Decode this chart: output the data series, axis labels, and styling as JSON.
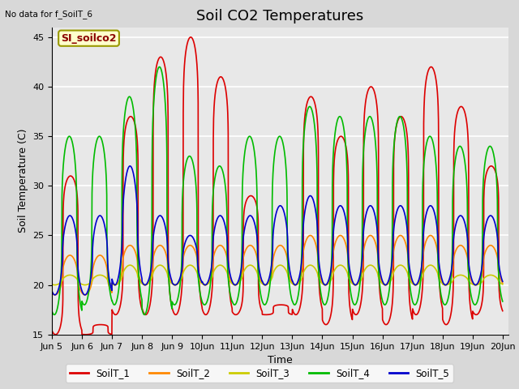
{
  "title": "Soil CO2 Temperatures",
  "xlabel": "Time",
  "ylabel": "Soil Temperature (C)",
  "ylim": [
    15,
    46
  ],
  "yticks": [
    15,
    20,
    25,
    30,
    35,
    40,
    45
  ],
  "xlim_days": [
    5.0,
    20.2
  ],
  "note": "No data for f_SoilT_6",
  "legend_label": "SI_soilco2",
  "series_names": [
    "SoilT_1",
    "SoilT_2",
    "SoilT_3",
    "SoilT_4",
    "SoilT_5"
  ],
  "series_colors": [
    "#dd0000",
    "#ff8800",
    "#cccc00",
    "#00bb00",
    "#0000cc"
  ],
  "background_color": "#e8e8e8",
  "plot_bg_color": "#e8e8e8",
  "title_fontsize": 13,
  "label_fontsize": 9,
  "tick_fontsize": 8,
  "red_base": 20.5,
  "red_peaks": [
    31,
    16,
    37,
    43,
    45,
    41,
    29,
    18,
    39,
    35,
    40,
    37,
    42,
    38,
    32
  ],
  "red_troughs": [
    15,
    15,
    17,
    17,
    17,
    17,
    17,
    17,
    17,
    16,
    17,
    16,
    17,
    16,
    17
  ],
  "green_peaks": [
    35,
    35,
    39,
    42,
    33,
    32,
    35,
    35,
    38,
    37,
    37,
    37,
    35,
    34,
    34
  ],
  "green_troughs": [
    17,
    18,
    18,
    17,
    18,
    18,
    18,
    18,
    18,
    18,
    18,
    18,
    18,
    18,
    18
  ],
  "blue_peaks": [
    27,
    27,
    32,
    27,
    25,
    27,
    27,
    28,
    29,
    28,
    28,
    28,
    28,
    27,
    27
  ],
  "blue_troughs": [
    19,
    19,
    20,
    20,
    20,
    20,
    20,
    20,
    20,
    20,
    20,
    20,
    20,
    20,
    20
  ],
  "orange_peaks": [
    23,
    23,
    24,
    24,
    24,
    24,
    24,
    24,
    25,
    25,
    25,
    25,
    25,
    24,
    24
  ],
  "orange_troughs": [
    19,
    19,
    20,
    20,
    20,
    20,
    20,
    20,
    20,
    20,
    20,
    20,
    20,
    20,
    20
  ],
  "yellow_peaks": [
    21,
    21,
    22,
    22,
    22,
    22,
    22,
    22,
    22,
    22,
    22,
    22,
    22,
    21,
    21
  ],
  "yellow_troughs": [
    20,
    20,
    20,
    20,
    20,
    20,
    20,
    20,
    20,
    20,
    20,
    20,
    20,
    20,
    20
  ]
}
